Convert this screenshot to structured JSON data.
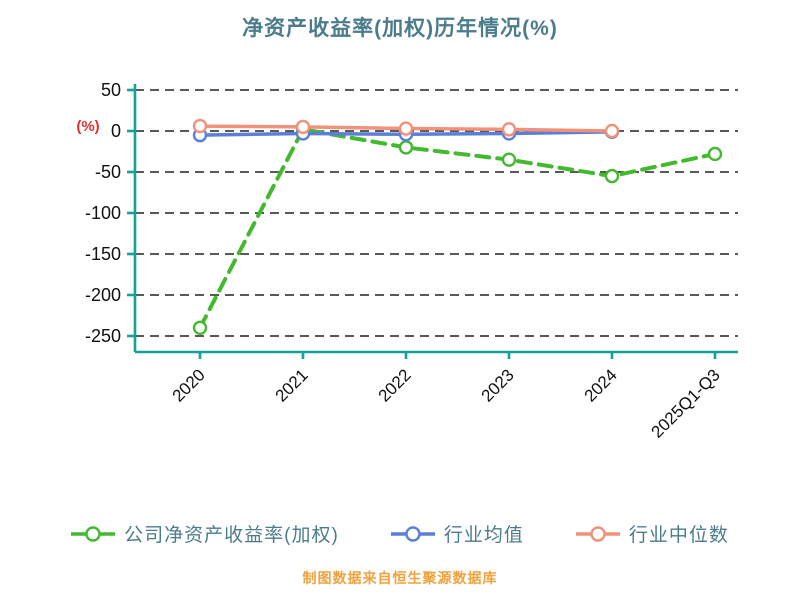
{
  "chart_data": {
    "type": "line",
    "title": "净资产收益率(加权)历年情况(%)",
    "ylabel": "(%)",
    "categories": [
      "2020",
      "2021",
      "2022",
      "2023",
      "2024",
      "2025Q1-Q3"
    ],
    "yticks": [
      50,
      0,
      -50,
      -100,
      -150,
      -200,
      -250
    ],
    "ylim": [
      -250,
      50
    ],
    "grid": "dashed-horizontal",
    "legend_position": "bottom",
    "series": [
      {
        "name": "公司净资产收益率(加权)",
        "values": [
          -240,
          2,
          -20,
          -35,
          -55,
          -28
        ],
        "color": "#43b92f",
        "style": "dashed"
      },
      {
        "name": "行业均值",
        "values": [
          -5,
          -3,
          -4,
          -3,
          -1,
          null
        ],
        "color": "#5a7fd8",
        "style": "solid"
      },
      {
        "name": "行业中位数",
        "values": [
          6,
          5,
          3,
          2,
          0,
          null
        ],
        "color": "#f2917a",
        "style": "solid"
      }
    ],
    "footer": "制图数据来自恒生聚源数据库",
    "colors": {
      "axis": "#12a19b",
      "grid": "#222222",
      "title": "#4a7c8c",
      "legend_text": "#4a7c8c",
      "footer": "#f0a23c",
      "ylabel": "#e03030",
      "tick_text": "#111111",
      "marker_fill": "#ffffff"
    }
  }
}
